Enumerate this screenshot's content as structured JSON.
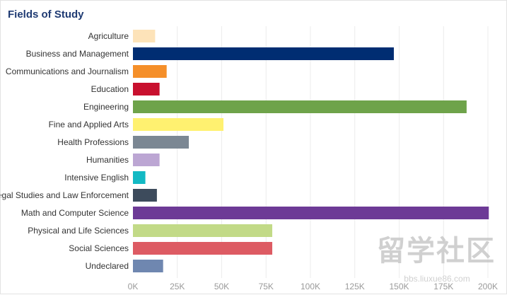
{
  "header": {
    "title": "Fields of Study"
  },
  "chart_data": {
    "type": "bar",
    "orientation": "horizontal",
    "title": "Fields of Study",
    "categories": [
      "Agriculture",
      "Business and Management",
      "Communications and Journalism",
      "Education",
      "Engineering",
      "Fine and Applied Arts",
      "Health Professions",
      "Humanities",
      "Intensive English",
      "Legal Studies and Law Enforcement",
      "Math and Computer Science",
      "Physical and Life Sciences",
      "Social Sciences",
      "Undeclared"
    ],
    "values": [
      12500,
      147000,
      19000,
      15000,
      188000,
      51000,
      31500,
      15000,
      7000,
      13500,
      200500,
      78500,
      78500,
      17000
    ],
    "colors": [
      "#fde3b9",
      "#002d72",
      "#f58f29",
      "#c8102e",
      "#6ea34a",
      "#fff170",
      "#7b8793",
      "#bca6d3",
      "#13b9c4",
      "#3d4b5c",
      "#6d3a96",
      "#c2da87",
      "#dd5b63",
      "#6f87b0"
    ],
    "xlim": [
      0,
      200000
    ],
    "xticks": [
      0,
      25000,
      50000,
      75000,
      100000,
      125000,
      150000,
      175000,
      200000
    ],
    "xtick_labels": [
      "0K",
      "25K",
      "50K",
      "75K",
      "100K",
      "125K",
      "150K",
      "175K",
      "200K"
    ],
    "grid": true,
    "xlabel": "",
    "ylabel": ""
  },
  "watermark": {
    "main": "留学社区",
    "sub": "bbs.liuxue86.com"
  }
}
